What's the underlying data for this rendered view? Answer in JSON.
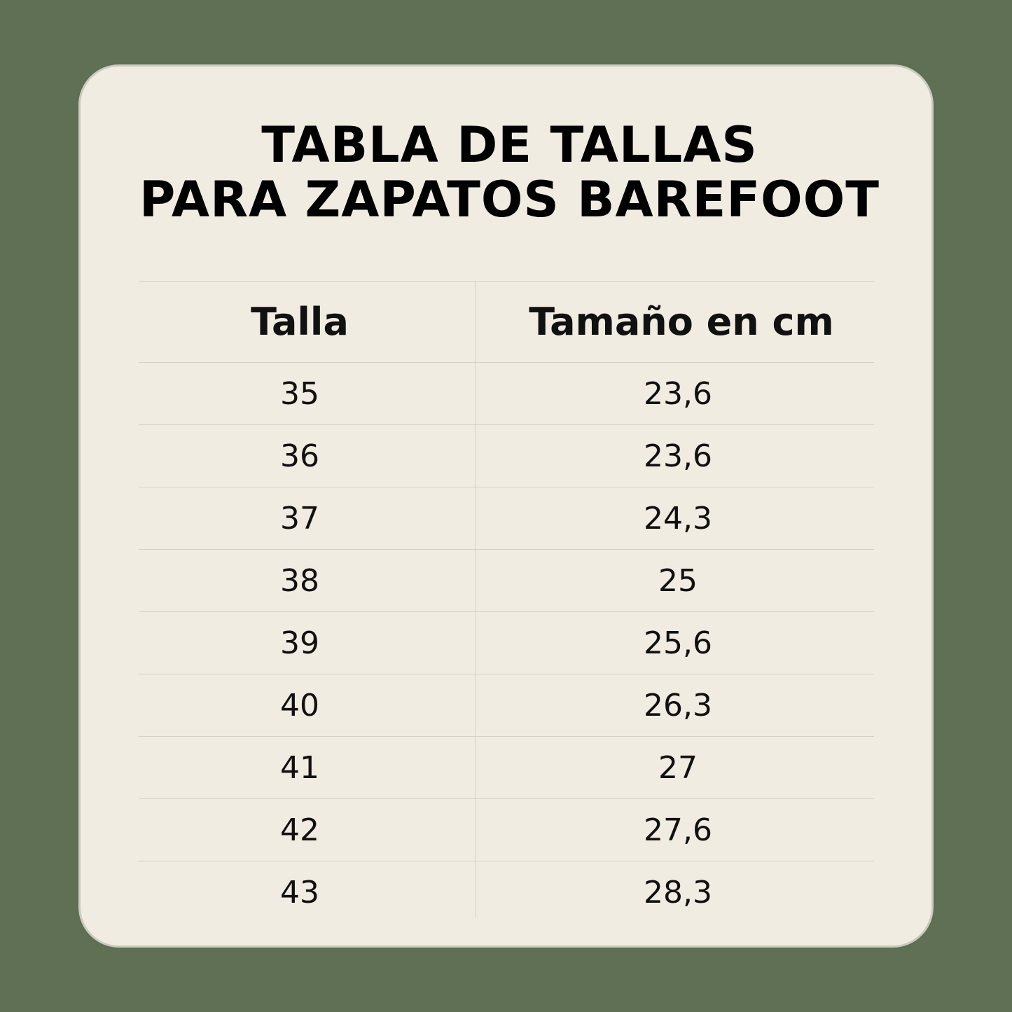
{
  "title": {
    "line1": "TABLA DE TALLAS",
    "line2": "PARA ZAPATOS BAREFOOT"
  },
  "table": {
    "headers": [
      "Talla",
      "Tamaño en cm"
    ],
    "rows": [
      [
        "35",
        "23,6"
      ],
      [
        "36",
        "23,6"
      ],
      [
        "37",
        "24,3"
      ],
      [
        "38",
        "25"
      ],
      [
        "39",
        "25,6"
      ],
      [
        "40",
        "26,3"
      ],
      [
        "41",
        "27"
      ],
      [
        "42",
        "27,6"
      ],
      [
        "43",
        "28,3"
      ]
    ]
  },
  "colors": {
    "background": "#5f7055",
    "card": "#f1ece2",
    "text": "#000000",
    "rule": "#d3d0c6"
  }
}
